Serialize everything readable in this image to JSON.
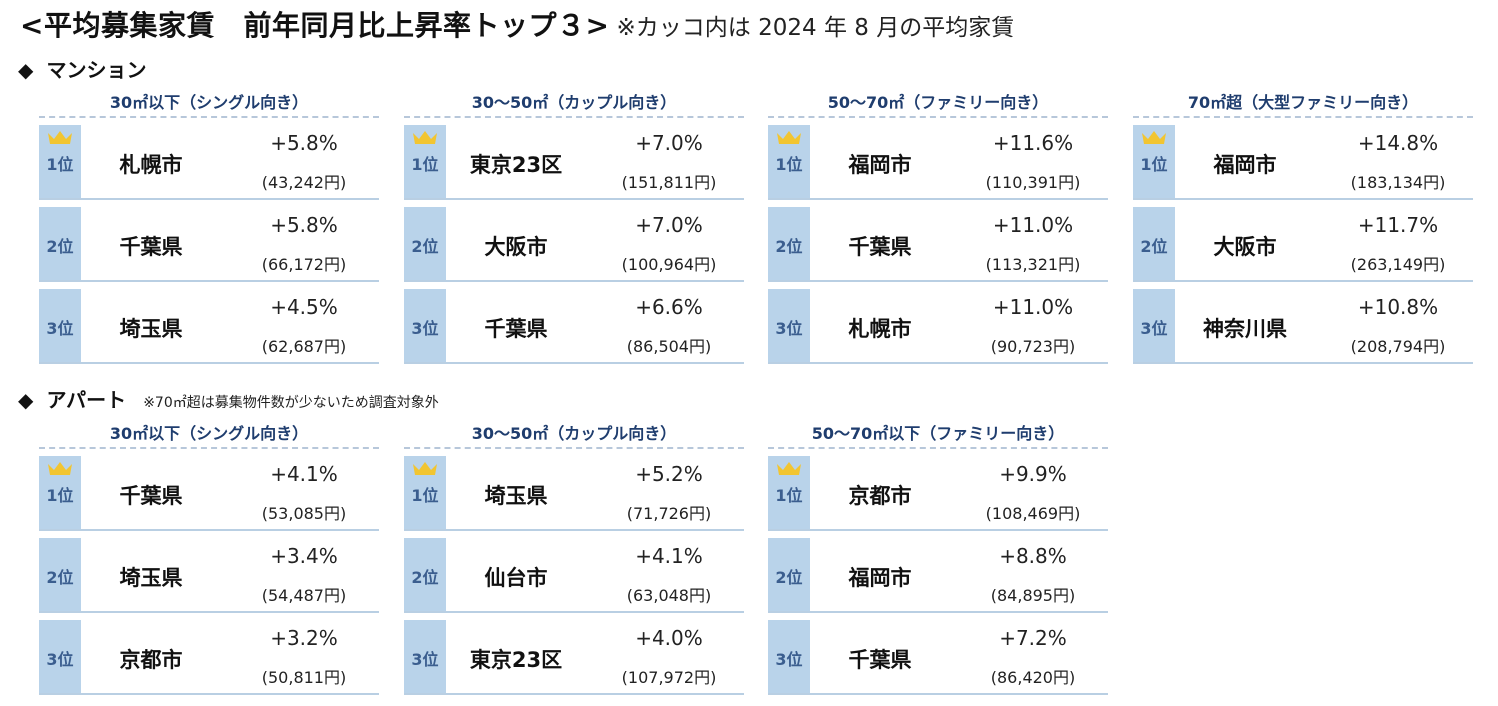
{
  "title": {
    "main": "<平均募集家賃　前年同月比上昇率トップ３>",
    "note": "※カッコ内は 2024 年 8 月の平均家賃"
  },
  "mansion": {
    "marker": "◆",
    "label": "マンション",
    "blocks": [
      {
        "heading": "30㎡以下（シングル向き）",
        "rows": [
          {
            "rank": "1位",
            "city": "札幌市",
            "rate": "+5.8%",
            "price": "(43,242円)"
          },
          {
            "rank": "2位",
            "city": "千葉県",
            "rate": "+5.8%",
            "price": "(66,172円)"
          },
          {
            "rank": "3位",
            "city": "埼玉県",
            "rate": "+4.5%",
            "price": "(62,687円)"
          }
        ]
      },
      {
        "heading": "30～50㎡（カップル向き）",
        "rows": [
          {
            "rank": "1位",
            "city": "東京23区",
            "rate": "+7.0%",
            "price": "(151,811円)"
          },
          {
            "rank": "2位",
            "city": "大阪市",
            "rate": "+7.0%",
            "price": "(100,964円)"
          },
          {
            "rank": "3位",
            "city": "千葉県",
            "rate": "+6.6%",
            "price": "(86,504円)"
          }
        ]
      },
      {
        "heading": "50～70㎡（ファミリー向き）",
        "rows": [
          {
            "rank": "1位",
            "city": "福岡市",
            "rate": "+11.6%",
            "price": "(110,391円)"
          },
          {
            "rank": "2位",
            "city": "千葉県",
            "rate": "+11.0%",
            "price": "(113,321円)"
          },
          {
            "rank": "3位",
            "city": "札幌市",
            "rate": "+11.0%",
            "price": "(90,723円)"
          }
        ]
      },
      {
        "heading": "70㎡超（大型ファミリー向き）",
        "rows": [
          {
            "rank": "1位",
            "city": "福岡市",
            "rate": "+14.8%",
            "price": "(183,134円)"
          },
          {
            "rank": "2位",
            "city": "大阪市",
            "rate": "+11.7%",
            "price": "(263,149円)"
          },
          {
            "rank": "3位",
            "city": "神奈川県",
            "rate": "+10.8%",
            "price": "(208,794円)"
          }
        ]
      }
    ]
  },
  "apart": {
    "marker": "◆",
    "label": "アパート",
    "note": "※70㎡超は募集物件数が少ないため調査対象外",
    "blocks": [
      {
        "heading": "30㎡以下（シングル向き）",
        "rows": [
          {
            "rank": "1位",
            "city": "千葉県",
            "rate": "+4.1%",
            "price": "(53,085円)"
          },
          {
            "rank": "2位",
            "city": "埼玉県",
            "rate": "+3.4%",
            "price": "(54,487円)"
          },
          {
            "rank": "3位",
            "city": "京都市",
            "rate": "+3.2%",
            "price": "(50,811円)"
          }
        ]
      },
      {
        "heading": "30～50㎡（カップル向き）",
        "rows": [
          {
            "rank": "1位",
            "city": "埼玉県",
            "rate": "+5.2%",
            "price": "(71,726円)"
          },
          {
            "rank": "2位",
            "city": "仙台市",
            "rate": "+4.1%",
            "price": "(63,048円)"
          },
          {
            "rank": "3位",
            "city": "東京23区",
            "rate": "+4.0%",
            "price": "(107,972円)"
          }
        ]
      },
      {
        "heading": "50～70㎡以下（ファミリー向き）",
        "rows": [
          {
            "rank": "1位",
            "city": "京都市",
            "rate": "+9.9%",
            "price": "(108,469円)"
          },
          {
            "rank": "2位",
            "city": "福岡市",
            "rate": "+8.8%",
            "price": "(84,895円)"
          },
          {
            "rank": "3位",
            "city": "千葉県",
            "rate": "+7.2%",
            "price": "(86,420円)"
          }
        ]
      }
    ]
  },
  "crown": {
    "icon": "crown-icon",
    "color": "#f2c531"
  }
}
